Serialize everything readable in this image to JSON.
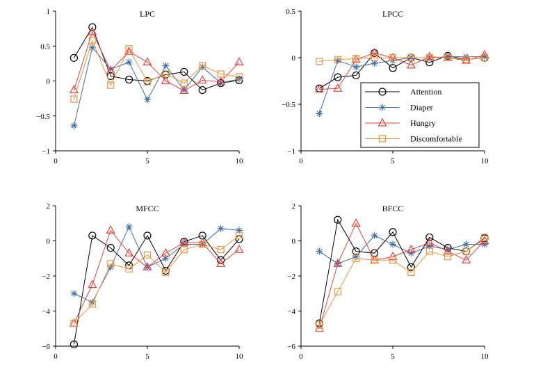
{
  "colors": {
    "Attention": "#000000",
    "Diaper": "#3a6ea5",
    "Hungry": "#e8413c",
    "Discomfortable": "#f0923a"
  },
  "markers": {
    "Attention": "circle",
    "Diaper": "asterisk",
    "Hungry": "triangle",
    "Discomfortable": "square"
  },
  "legend": {
    "entries": [
      "Attention",
      "Diaper",
      "Hungry",
      "Discomfortable"
    ],
    "placement": "inside LPCC panel, bottom-right"
  },
  "chart_data": [
    {
      "type": "line",
      "title": "LPC",
      "xlim": [
        0,
        10
      ],
      "ylim": [
        -1,
        1
      ],
      "xticks": [
        "0",
        "5",
        "10"
      ],
      "yticks": [
        "1",
        "0.5",
        "0",
        "−0.5",
        "−1"
      ],
      "yticks_values": [
        1,
        0.5,
        0,
        -0.5,
        -1
      ],
      "x": [
        1,
        2,
        3,
        4,
        5,
        6,
        7,
        8,
        9,
        10
      ],
      "series": [
        {
          "name": "Attention",
          "values": [
            0.33,
            0.77,
            0.07,
            0.02,
            0.0,
            0.09,
            0.13,
            -0.13,
            -0.03,
            0.01
          ]
        },
        {
          "name": "Diaper",
          "values": [
            -0.64,
            0.48,
            0.17,
            0.27,
            -0.27,
            0.22,
            -0.13,
            0.2,
            -0.03,
            0.03
          ]
        },
        {
          "name": "Hungry",
          "values": [
            -0.13,
            0.7,
            0.15,
            0.42,
            0.27,
            0.0,
            -0.14,
            0.01,
            -0.01,
            0.27
          ]
        },
        {
          "name": "Discomfortable",
          "values": [
            -0.26,
            0.58,
            -0.06,
            0.46,
            -0.01,
            0.1,
            -0.03,
            0.22,
            0.1,
            0.06
          ]
        }
      ]
    },
    {
      "type": "line",
      "title": "LPCC",
      "xlim": [
        0,
        10
      ],
      "ylim": [
        -1,
        0.5
      ],
      "xticks": [
        "0",
        "5",
        "10"
      ],
      "yticks": [
        "0.5",
        "0",
        "−0.5",
        "−1"
      ],
      "yticks_values": [
        0.5,
        0,
        -0.5,
        -1
      ],
      "x": [
        1,
        2,
        3,
        4,
        5,
        6,
        7,
        8,
        9,
        10
      ],
      "series": [
        {
          "name": "Attention",
          "values": [
            -0.33,
            -0.21,
            -0.19,
            0.05,
            -0.11,
            0.0,
            -0.05,
            0.02,
            -0.02,
            0.0
          ]
        },
        {
          "name": "Diaper",
          "values": [
            -0.6,
            -0.03,
            -0.1,
            -0.06,
            -0.03,
            0.0,
            0.0,
            0.01,
            0.01,
            0.01
          ]
        },
        {
          "name": "Hungry",
          "values": [
            -0.34,
            -0.33,
            -0.02,
            0.05,
            0.0,
            -0.08,
            0.01,
            0.0,
            -0.03,
            0.03
          ]
        },
        {
          "name": "Discomfortable",
          "values": [
            -0.04,
            -0.02,
            -0.01,
            0.0,
            0.0,
            0.0,
            0.0,
            0.0,
            -0.02,
            0.0
          ]
        }
      ]
    },
    {
      "type": "line",
      "title": "MFCC",
      "xlim": [
        0,
        10
      ],
      "ylim": [
        -6,
        2
      ],
      "xticks": [
        "0",
        "5",
        "10"
      ],
      "yticks": [
        "2",
        "0",
        "−2",
        "−4",
        "−6"
      ],
      "yticks_values": [
        2,
        0,
        -2,
        -4,
        -6
      ],
      "x": [
        1,
        2,
        3,
        4,
        5,
        6,
        7,
        8,
        9,
        10
      ],
      "series": [
        {
          "name": "Attention",
          "values": [
            -5.9,
            0.3,
            -0.4,
            -1.4,
            0.3,
            -1.7,
            -0.05,
            0.3,
            -1.1,
            0.1
          ]
        },
        {
          "name": "Diaper",
          "values": [
            -3.0,
            -3.5,
            -1.5,
            0.8,
            -1.5,
            -1.0,
            -0.2,
            -0.2,
            0.7,
            0.6
          ]
        },
        {
          "name": "Hungry",
          "values": [
            -4.7,
            -2.5,
            0.6,
            -0.7,
            -1.5,
            -0.7,
            -0.1,
            -0.1,
            -1.3,
            -0.5
          ]
        },
        {
          "name": "Discomfortable",
          "values": [
            -4.7,
            -3.6,
            -1.3,
            -1.6,
            -0.8,
            -1.8,
            -0.5,
            -0.2,
            -0.5,
            0.3
          ]
        }
      ]
    },
    {
      "type": "line",
      "title": "BFCC",
      "xlim": [
        0,
        10
      ],
      "ylim": [
        -6,
        2
      ],
      "xticks": [
        "0",
        "5",
        "10"
      ],
      "yticks": [
        "2",
        "0",
        "−2",
        "−4",
        "−6"
      ],
      "yticks_values": [
        2,
        0,
        -2,
        -4,
        -6
      ],
      "x": [
        1,
        2,
        3,
        4,
        5,
        6,
        7,
        8,
        9,
        10
      ],
      "series": [
        {
          "name": "Attention",
          "values": [
            -4.7,
            1.2,
            -0.6,
            -0.7,
            0.5,
            -1.5,
            0.2,
            -0.4,
            -0.6,
            0.15
          ]
        },
        {
          "name": "Diaper",
          "values": [
            -0.6,
            -1.3,
            -0.9,
            0.3,
            -0.2,
            -0.7,
            -0.3,
            -0.5,
            -0.2,
            -0.2
          ]
        },
        {
          "name": "Hungry",
          "values": [
            -5.0,
            -1.3,
            1.0,
            -1.1,
            -0.9,
            -0.5,
            -0.1,
            -0.6,
            -1.1,
            0.0
          ]
        },
        {
          "name": "Discomfortable",
          "values": [
            -4.8,
            -2.9,
            -1.0,
            -1.1,
            -1.1,
            -1.8,
            -0.6,
            -0.9,
            -0.6,
            0.2
          ]
        }
      ]
    }
  ]
}
